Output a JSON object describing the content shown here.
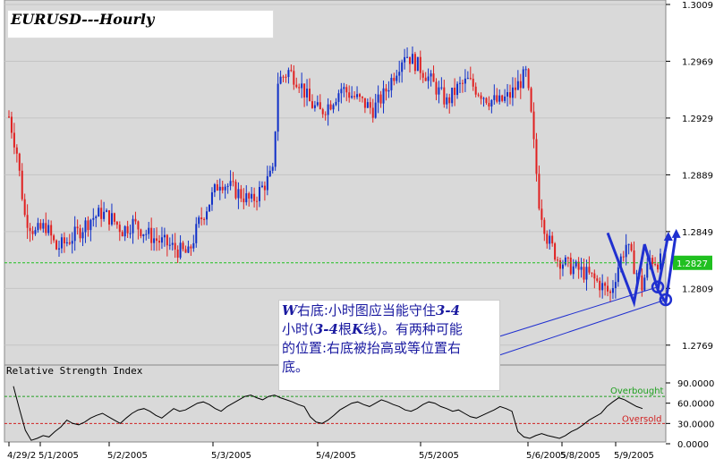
{
  "title": "EURUSD---Hourly",
  "rsi_title": "Relative Strength Index",
  "annotation": {
    "line1_a": "W",
    "line1_b": "右底:小时图应当能守住",
    "line1_c": "3-4",
    "line2_a": "小时(",
    "line2_b": "3-4",
    "line2_c": "根",
    "line2_d": "K",
    "line2_e": "线)。有两种可能",
    "line3": "的位置:右底被抬高或等位置右",
    "line4": "底。"
  },
  "colors": {
    "up": "#1030c8",
    "down": "#e02020",
    "current": "#20c020",
    "rsi": "#000000",
    "overbought": "#20a020",
    "oversold": "#d02020",
    "annotation": "#1a1aa0"
  },
  "chart_data": [
    {
      "type": "candlestick",
      "title": "EURUSD---Hourly",
      "y_ticks": [
        "1.3009",
        "1.2969",
        "1.2929",
        "1.2889",
        "1.2849",
        "1.2809",
        "1.2769"
      ],
      "ylim": [
        1.2755,
        1.3009
      ],
      "x_ticks": [
        "4/29/2005",
        "5/1/2005",
        "5/2/2005",
        "5/3/2005",
        "5/4/2005",
        "5/5/2005",
        "5/6/2005",
        "5/8/2005",
        "5/9/2005"
      ],
      "current_price": 1.2827,
      "current_price_label": "1.2827",
      "path": [
        [
          0,
          1.293
        ],
        [
          3,
          1.2905
        ],
        [
          6,
          1.286
        ],
        [
          10,
          1.2848
        ],
        [
          14,
          1.2853
        ],
        [
          18,
          1.2837
        ],
        [
          22,
          1.2842
        ],
        [
          27,
          1.285
        ],
        [
          31,
          1.2858
        ],
        [
          35,
          1.2862
        ],
        [
          39,
          1.2858
        ],
        [
          43,
          1.285
        ],
        [
          47,
          1.2855
        ],
        [
          52,
          1.2848
        ],
        [
          56,
          1.2843
        ],
        [
          60,
          1.284
        ],
        [
          64,
          1.2836
        ],
        [
          68,
          1.2833
        ],
        [
          72,
          1.2855
        ],
        [
          76,
          1.287
        ],
        [
          80,
          1.2885
        ],
        [
          84,
          1.288
        ],
        [
          88,
          1.2875
        ],
        [
          92,
          1.287
        ],
        [
          96,
          1.288
        ],
        [
          100,
          1.289
        ],
        [
          102,
          1.2955
        ],
        [
          106,
          1.2962
        ],
        [
          110,
          1.2955
        ],
        [
          114,
          1.294
        ],
        [
          118,
          1.2933
        ],
        [
          122,
          1.294
        ],
        [
          126,
          1.295
        ],
        [
          130,
          1.2945
        ],
        [
          134,
          1.294
        ],
        [
          138,
          1.2935
        ],
        [
          142,
          1.2945
        ],
        [
          146,
          1.296
        ],
        [
          150,
          1.2975
        ],
        [
          154,
          1.2968
        ],
        [
          158,
          1.296
        ],
        [
          162,
          1.295
        ],
        [
          166,
          1.294
        ],
        [
          170,
          1.295
        ],
        [
          174,
          1.2955
        ],
        [
          178,
          1.2948
        ],
        [
          182,
          1.2942
        ],
        [
          186,
          1.294
        ],
        [
          190,
          1.2945
        ],
        [
          194,
          1.2955
        ],
        [
          196,
          1.296
        ],
        [
          198,
          1.293
        ],
        [
          201,
          1.287
        ],
        [
          204,
          1.2845
        ],
        [
          208,
          1.283
        ],
        [
          212,
          1.2825
        ],
        [
          216,
          1.2822
        ],
        [
          220,
          1.2818
        ],
        [
          224,
          1.2812
        ],
        [
          228,
          1.2805
        ],
        [
          231,
          1.2825
        ],
        [
          234,
          1.284
        ],
        [
          237,
          1.2825
        ],
        [
          240,
          1.281
        ],
        [
          243,
          1.283
        ],
        [
          246,
          1.2828
        ]
      ],
      "indicator": {
        "name": "Relative Strength Index",
        "ylim": [
          0,
          90
        ],
        "y_ticks": [
          "90.0000",
          "60.0000",
          "30.0000",
          "0.0000"
        ],
        "overbought": 70,
        "oversold": 30,
        "overbought_label": "Overbought",
        "oversold_label": "Oversold",
        "values": [
          85,
          52,
          20,
          5,
          8,
          12,
          10,
          18,
          25,
          35,
          30,
          28,
          32,
          38,
          42,
          45,
          40,
          35,
          30,
          38,
          45,
          50,
          52,
          48,
          42,
          38,
          45,
          52,
          48,
          50,
          55,
          60,
          62,
          58,
          52,
          48,
          55,
          60,
          65,
          70,
          72,
          68,
          65,
          70,
          72,
          68,
          65,
          62,
          58,
          55,
          40,
          32,
          30,
          35,
          42,
          50,
          55,
          60,
          62,
          58,
          55,
          60,
          65,
          62,
          58,
          55,
          50,
          48,
          52,
          58,
          62,
          60,
          55,
          52,
          48,
          50,
          45,
          40,
          38,
          42,
          46,
          50,
          55,
          52,
          48,
          18,
          10,
          8,
          12,
          15,
          12,
          10,
          8,
          12,
          18,
          22,
          28,
          35,
          40,
          45,
          55,
          62,
          68,
          65,
          60,
          55,
          52
        ]
      }
    }
  ]
}
